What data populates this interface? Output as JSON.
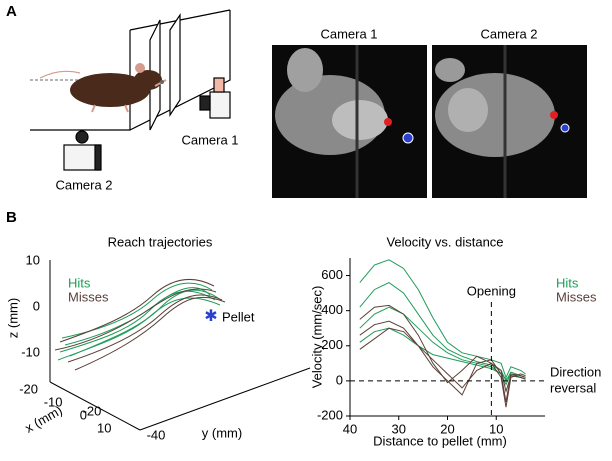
{
  "panel_a": {
    "label": "A",
    "schematic": {
      "camera_1": "Camera 1",
      "camera_2": "Camera 2"
    },
    "photos": [
      {
        "title": "Camera 1"
      },
      {
        "title": "Camera 2"
      }
    ]
  },
  "panel_b": {
    "label": "B",
    "trajectories": {
      "title": "Reach trajectories",
      "z_label": "z (mm)",
      "x_label": "x (mm)",
      "y_label": "y (mm)",
      "z_ticks": [
        10,
        0,
        -10
      ],
      "x_ticks": [
        -20,
        -10,
        0,
        10
      ],
      "y_ticks": [
        -20,
        -40
      ],
      "legend": [
        {
          "name": "Hits",
          "color": "#1e9c58"
        },
        {
          "name": "Misses",
          "color": "#5b4038"
        }
      ],
      "annotation": "Pellet"
    },
    "velocity": {
      "type": "line",
      "title": "Velocity vs. distance",
      "x_label": "Distance to pellet (mm)",
      "y_label": "Velocity (mm/sec)",
      "xlim": [
        40,
        0
      ],
      "ylim": [
        -200,
        700
      ],
      "xticks": [
        40,
        30,
        20,
        10
      ],
      "yticks": [
        -200,
        0,
        200,
        400,
        600
      ],
      "opening": {
        "label": "Opening",
        "x": 11
      },
      "reversal": {
        "label": [
          "Direction",
          "reversal"
        ],
        "y": 0
      },
      "legend": [
        {
          "name": "Hits",
          "color": "#1e9c58"
        },
        {
          "name": "Misses",
          "color": "#5b4038"
        }
      ],
      "x": [
        38,
        35,
        32,
        29,
        26,
        23,
        20,
        17,
        14,
        11,
        9,
        8,
        7,
        5,
        4
      ],
      "series": [
        {
          "color": "#1e9c58",
          "values": [
            560,
            660,
            690,
            640,
            520,
            360,
            220,
            160,
            140,
            120,
            100,
            20,
            80,
            60,
            40
          ]
        },
        {
          "color": "#1e9c58",
          "values": [
            420,
            520,
            560,
            500,
            380,
            260,
            180,
            140,
            110,
            90,
            60,
            0,
            50,
            30,
            20
          ]
        },
        {
          "color": "#1e9c58",
          "values": [
            300,
            380,
            420,
            380,
            300,
            220,
            160,
            120,
            100,
            80,
            40,
            -20,
            40,
            20,
            10
          ]
        },
        {
          "color": "#1e9c58",
          "values": [
            220,
            280,
            300,
            260,
            200,
            150,
            130,
            110,
            90,
            70,
            40,
            10,
            30,
            20,
            10
          ]
        },
        {
          "color": "#5b4038",
          "values": [
            350,
            420,
            430,
            380,
            260,
            100,
            -10,
            60,
            140,
            100,
            20,
            -150,
            20,
            40,
            30
          ]
        },
        {
          "color": "#5b4038",
          "values": [
            260,
            320,
            340,
            300,
            200,
            80,
            0,
            -80,
            100,
            120,
            40,
            -120,
            40,
            30,
            20
          ]
        },
        {
          "color": "#5b4038",
          "values": [
            180,
            240,
            300,
            280,
            200,
            120,
            40,
            -40,
            60,
            100,
            60,
            -60,
            30,
            20,
            10
          ]
        }
      ]
    }
  }
}
